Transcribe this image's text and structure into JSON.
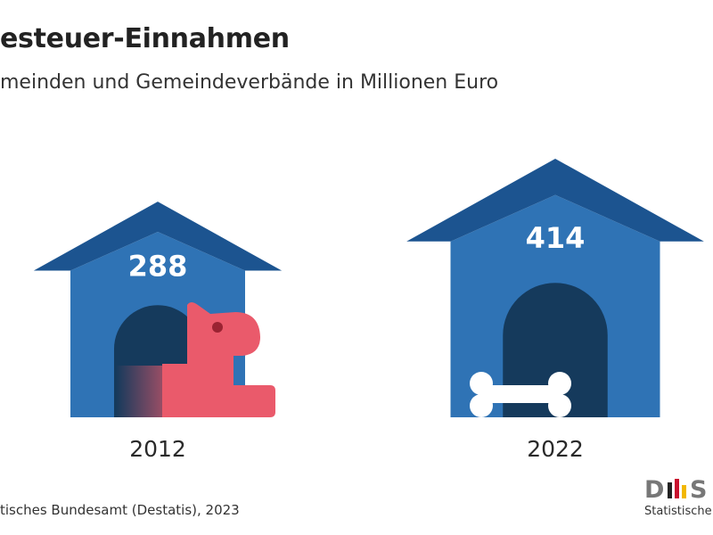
{
  "chart_data": {
    "type": "bar",
    "title": "esteuer-Einnahmen",
    "subtitle": "meinden und Gemeindeverbände in Millionen Euro",
    "categories": [
      "2012",
      "2022"
    ],
    "values": [
      288,
      414
    ],
    "value_labels": [
      "288",
      "414"
    ],
    "unit": "Millionen Euro"
  },
  "source": "tisches Bundesamt (Destatis), 2023",
  "logo": {
    "mark": "D",
    "text": "Statistische"
  },
  "colors": {
    "house_body": "#2f73b5",
    "roof": "#1c5490",
    "door": "#153a5c",
    "dog": "#ea5a6b",
    "bone": "#ffffff",
    "value_text": "#ffffff"
  },
  "icons": [
    "dog-house-icon",
    "dog-icon",
    "bone-icon",
    "destatis-logo"
  ]
}
